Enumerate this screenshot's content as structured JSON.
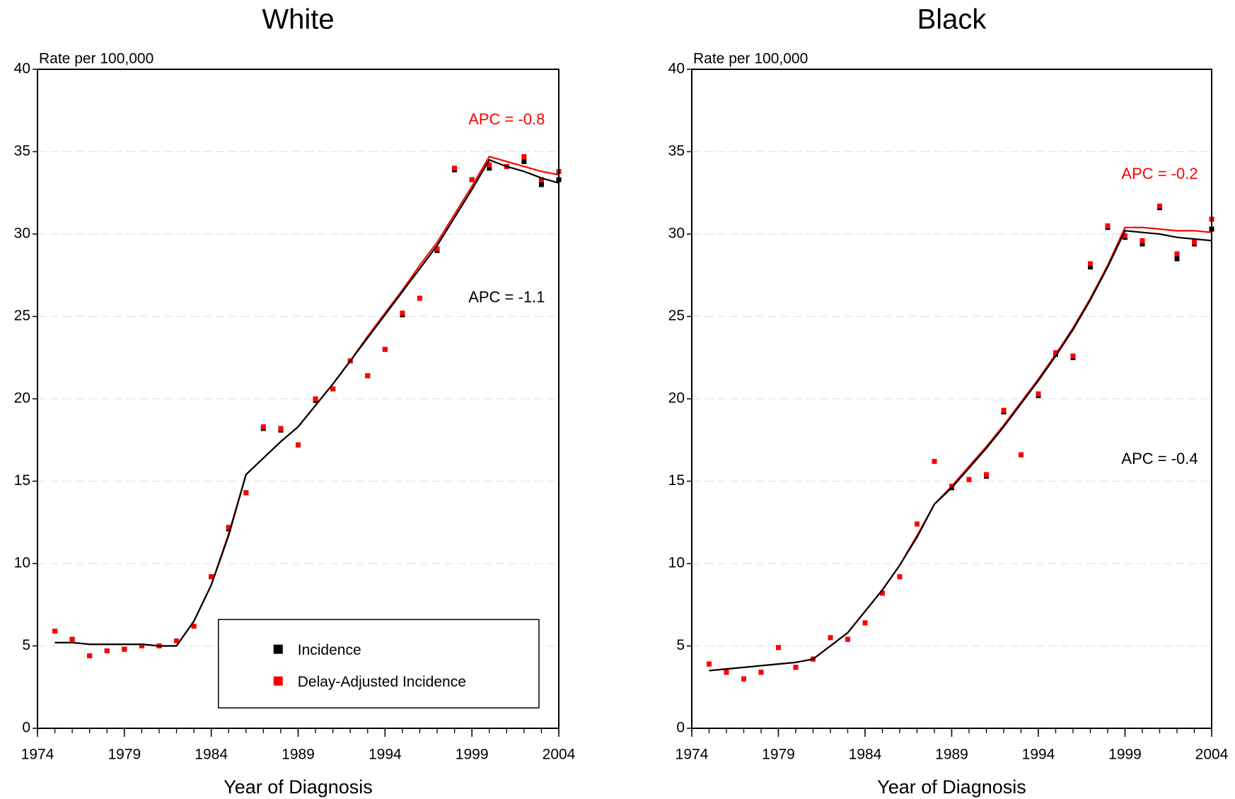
{
  "chart_data": [
    {
      "type": "line",
      "title": "White",
      "ylabel": "Rate per 100,000",
      "xlabel": "Year of Diagnosis",
      "x": [
        1975,
        1976,
        1977,
        1978,
        1979,
        1980,
        1981,
        1982,
        1983,
        1984,
        1985,
        1986,
        1987,
        1988,
        1989,
        1990,
        1991,
        1992,
        1993,
        1994,
        1995,
        1996,
        1997,
        1998,
        1999,
        2000,
        2001,
        2002,
        2003,
        2004
      ],
      "series": [
        {
          "name": "Incidence",
          "color": "#000000",
          "values": [
            5.9,
            5.4,
            4.4,
            4.7,
            4.8,
            5.0,
            5.0,
            5.3,
            6.2,
            9.2,
            12.1,
            14.3,
            18.2,
            18.1,
            17.2,
            19.9,
            20.6,
            22.3,
            21.4,
            23.0,
            25.1,
            26.1,
            29.0,
            33.9,
            33.3,
            34.0,
            34.1,
            34.4,
            33.0,
            33.3
          ]
        },
        {
          "name": "Delay-Adjusted Incidence",
          "color": "#ff0000",
          "values": [
            5.9,
            5.4,
            4.4,
            4.7,
            4.8,
            5.0,
            5.0,
            5.3,
            6.2,
            9.2,
            12.2,
            14.3,
            18.3,
            18.2,
            17.2,
            20.0,
            20.6,
            22.3,
            21.4,
            23.0,
            25.2,
            26.1,
            29.1,
            34.0,
            33.3,
            34.2,
            34.1,
            34.7,
            33.3,
            33.8
          ]
        }
      ],
      "fits": [
        {
          "color": "#ff0000",
          "values": [
            5.2,
            5.2,
            5.1,
            5.1,
            5.1,
            5.1,
            5.0,
            5.0,
            6.5,
            8.7,
            11.8,
            15.4,
            16.4,
            17.4,
            18.3,
            19.6,
            20.9,
            22.3,
            23.8,
            25.2,
            26.6,
            28.1,
            29.5,
            31.2,
            32.9,
            34.7,
            34.4,
            34.1,
            33.8,
            33.6
          ]
        },
        {
          "color": "#000000",
          "values": [
            5.2,
            5.2,
            5.1,
            5.1,
            5.1,
            5.1,
            5.0,
            5.0,
            6.5,
            8.7,
            11.7,
            15.4,
            16.4,
            17.4,
            18.3,
            19.6,
            20.9,
            22.3,
            23.7,
            25.1,
            26.5,
            27.9,
            29.3,
            31.0,
            32.7,
            34.5,
            34.1,
            33.8,
            33.4,
            33.1
          ]
        }
      ],
      "annotations": [
        {
          "text": "APC = -0.8",
          "color": "#ff0000"
        },
        {
          "text": "APC = -1.1",
          "color": "#000000"
        }
      ],
      "xlim": [
        1974,
        2004
      ],
      "xticks": [
        1974,
        1979,
        1984,
        1989,
        1994,
        1999,
        2004
      ],
      "ylim": [
        0,
        40
      ],
      "yticks": [
        0,
        5,
        10,
        15,
        20,
        25,
        30,
        35,
        40
      ],
      "grid": true,
      "legend": "lower right"
    },
    {
      "type": "line",
      "title": "Black",
      "ylabel": "Rate per 100,000",
      "xlabel": "Year of Diagnosis",
      "x": [
        1975,
        1976,
        1977,
        1978,
        1979,
        1980,
        1981,
        1982,
        1983,
        1984,
        1985,
        1986,
        1987,
        1988,
        1989,
        1990,
        1991,
        1992,
        1993,
        1994,
        1995,
        1996,
        1997,
        1998,
        1999,
        2000,
        2001,
        2002,
        2003,
        2004
      ],
      "series": [
        {
          "name": "Incidence",
          "color": "#000000",
          "values": [
            3.9,
            3.4,
            3.0,
            3.4,
            4.9,
            3.7,
            4.2,
            5.5,
            5.4,
            6.4,
            8.2,
            9.2,
            12.4,
            16.2,
            14.6,
            15.1,
            15.3,
            19.2,
            16.6,
            20.2,
            22.7,
            22.5,
            28.0,
            30.4,
            29.8,
            29.4,
            31.6,
            28.5,
            29.4,
            30.3
          ]
        },
        {
          "name": "Delay-Adjusted Incidence",
          "color": "#ff0000",
          "values": [
            3.9,
            3.4,
            3.0,
            3.4,
            4.9,
            3.7,
            4.2,
            5.5,
            5.4,
            6.4,
            8.2,
            9.2,
            12.4,
            16.2,
            14.7,
            15.1,
            15.4,
            19.3,
            16.6,
            20.3,
            22.8,
            22.6,
            28.2,
            30.5,
            29.9,
            29.6,
            31.7,
            28.8,
            29.5,
            30.9
          ]
        }
      ],
      "fits": [
        {
          "color": "#ff0000",
          "values": [
            3.5,
            3.6,
            3.7,
            3.8,
            3.9,
            4.0,
            4.2,
            5.0,
            5.8,
            7.1,
            8.4,
            9.9,
            11.7,
            13.6,
            14.7,
            15.9,
            17.1,
            18.4,
            19.8,
            21.2,
            22.7,
            24.3,
            26.1,
            28.1,
            30.4,
            30.4,
            30.3,
            30.2,
            30.2,
            30.1
          ]
        },
        {
          "color": "#000000",
          "values": [
            3.5,
            3.6,
            3.7,
            3.8,
            3.9,
            4.0,
            4.2,
            5.0,
            5.8,
            7.1,
            8.4,
            9.9,
            11.6,
            13.6,
            14.6,
            15.8,
            17.0,
            18.3,
            19.7,
            21.1,
            22.6,
            24.2,
            26.0,
            28.0,
            30.2,
            30.1,
            30.0,
            29.8,
            29.7,
            29.6
          ]
        }
      ],
      "annotations": [
        {
          "text": "APC = -0.2",
          "color": "#ff0000"
        },
        {
          "text": "APC = -0.4",
          "color": "#000000"
        }
      ],
      "xlim": [
        1974,
        2004
      ],
      "xticks": [
        1974,
        1979,
        1984,
        1989,
        1994,
        1999,
        2004
      ],
      "ylim": [
        0,
        40
      ],
      "yticks": [
        0,
        5,
        10,
        15,
        20,
        25,
        30,
        35,
        40
      ],
      "grid": true
    }
  ]
}
